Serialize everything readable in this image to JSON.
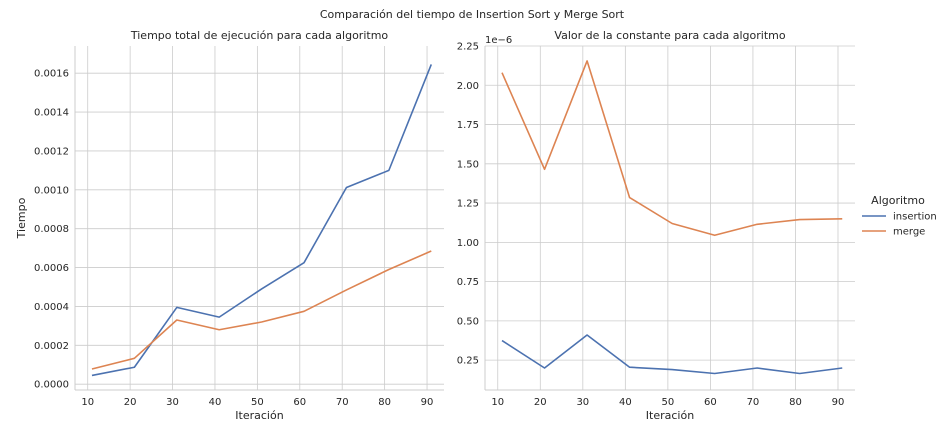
{
  "figure": {
    "suptitle": "Comparación del tiempo de Insertion Sort y Merge Sort"
  },
  "legend": {
    "title": "Algoritmo",
    "placement": "right-center",
    "entries": [
      {
        "name": "insertion",
        "color": "#4c72b0"
      },
      {
        "name": "merge",
        "color": "#dd8452"
      }
    ]
  },
  "chart_data": [
    {
      "type": "line",
      "title": "Tiempo total de ejecución para cada algoritmo",
      "xlabel": "Iteración",
      "ylabel": "Tiempo",
      "xlim": [
        7,
        94
      ],
      "ylim": [
        -3e-05,
        0.00174
      ],
      "grid": true,
      "x_ticks": [
        10,
        20,
        30,
        40,
        50,
        60,
        70,
        80,
        90
      ],
      "y_ticks": [
        0.0,
        0.0002,
        0.0004,
        0.0006,
        0.0008,
        0.001,
        0.0012,
        0.0014,
        0.0016
      ],
      "y_tick_labels": [
        "0.0000",
        "0.0002",
        "0.0004",
        "0.0006",
        "0.0008",
        "0.0010",
        "0.0012",
        "0.0014",
        "0.0016"
      ],
      "x": [
        11,
        21,
        31,
        41,
        51,
        61,
        71,
        81,
        91
      ],
      "series": [
        {
          "name": "insertion",
          "color": "#4c72b0",
          "values": [
            4.5e-05,
            8.7e-05,
            0.000395,
            0.000345,
            0.00049,
            0.000625,
            0.001012,
            0.0011,
            0.001645
          ]
        },
        {
          "name": "merge",
          "color": "#dd8452",
          "values": [
            7.8e-05,
            0.000133,
            0.00033,
            0.00028,
            0.00032,
            0.000375,
            0.000485,
            0.00059,
            0.000685
          ]
        }
      ]
    },
    {
      "type": "line",
      "title": "Valor de la constante para cada algoritmo",
      "xlabel": "Iteración",
      "ylabel": "",
      "offset_text": "1e−6",
      "xlim": [
        7,
        94
      ],
      "ylim": [
        0.06,
        2.25
      ],
      "grid": true,
      "x_ticks": [
        10,
        20,
        30,
        40,
        50,
        60,
        70,
        80,
        90
      ],
      "y_ticks": [
        0.25,
        0.5,
        0.75,
        1.0,
        1.25,
        1.5,
        1.75,
        2.0,
        2.25
      ],
      "y_tick_labels": [
        "0.25",
        "0.50",
        "0.75",
        "1.00",
        "1.25",
        "1.50",
        "1.75",
        "2.00",
        "2.25"
      ],
      "x": [
        11,
        21,
        31,
        41,
        51,
        61,
        71,
        81,
        91
      ],
      "series": [
        {
          "name": "insertion",
          "color": "#4c72b0",
          "values": [
            0.375,
            0.2,
            0.41,
            0.205,
            0.19,
            0.165,
            0.2,
            0.165,
            0.2
          ]
        },
        {
          "name": "merge",
          "color": "#dd8452",
          "values": [
            2.08,
            1.465,
            2.155,
            1.285,
            1.12,
            1.045,
            1.115,
            1.145,
            1.15
          ]
        }
      ]
    }
  ]
}
